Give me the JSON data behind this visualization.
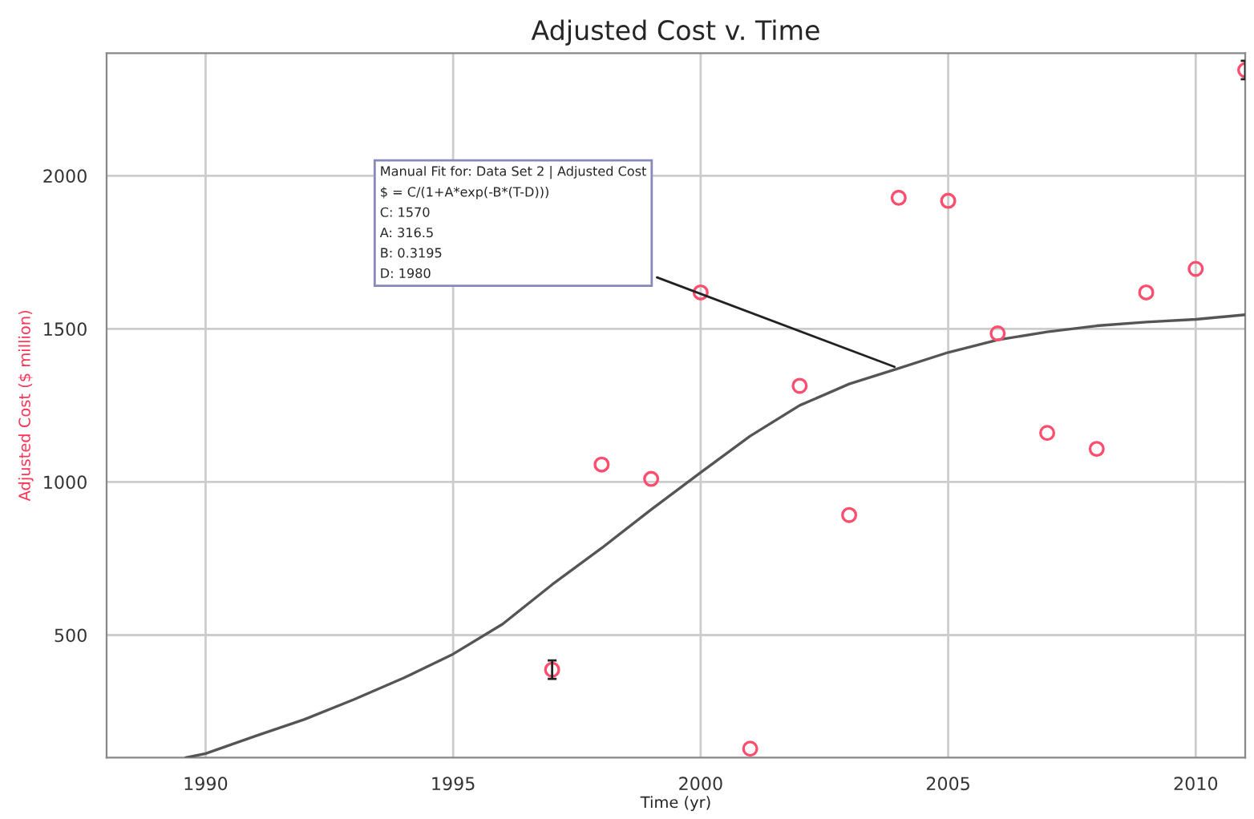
{
  "chart_data": {
    "type": "scatter",
    "title": "Adjusted Cost v. Time",
    "xlabel": "Time (yr)",
    "ylabel": "Adjusted Cost ($ million)",
    "xlim": [
      1988,
      2011
    ],
    "xticks": [
      1990,
      1995,
      2000,
      2005,
      2010
    ],
    "ylim": [
      100,
      2400
    ],
    "yticks": [
      500,
      1000,
      1500,
      2000
    ],
    "grid": true,
    "series": [
      {
        "color": "#ff4d6d",
        "marker": "circle",
        "x": [
          1997,
          1998,
          1999,
          2000,
          2001,
          2002,
          2003,
          2004,
          2005,
          2006,
          2007,
          2008,
          2009,
          2010,
          2011
        ],
        "values": [
          387,
          1057,
          1010,
          1619,
          129,
          1314,
          892,
          1928,
          1918,
          1485,
          1160,
          1108,
          1619,
          1696,
          2345
        ],
        "errors": [
          30,
          null,
          null,
          null,
          null,
          null,
          null,
          null,
          null,
          null,
          null,
          null,
          null,
          null,
          30
        ]
      },
      {
        "type": "line",
        "color": "#555555",
        "marker": "none",
        "line_style": "solid",
        "x": [
          1989.6,
          1990,
          1991,
          1992,
          1993,
          1994,
          1995,
          1996,
          1997,
          1998,
          1999,
          2000,
          2001,
          2002,
          2003,
          2004,
          2005,
          2006,
          2007,
          2008,
          2009,
          2010,
          2011
        ],
        "values": [
          100,
          113,
          170,
          225,
          290,
          360,
          438,
          536,
          665,
          784,
          910,
          1031,
          1150,
          1250,
          1320,
          1371,
          1423,
          1464,
          1490,
          1510,
          1522,
          1531,
          1546
        ]
      }
    ],
    "annotations": [
      {
        "text": "Manual Fit for: Data Set 2 | Adjusted Cost\n$ = C/(1+A*exp(-B*(T-D)))\nC: 1570\nA: 316.5\nB: 0.3195\nD: 1980",
        "x": 2004,
        "y": 1371
      }
    ]
  }
}
